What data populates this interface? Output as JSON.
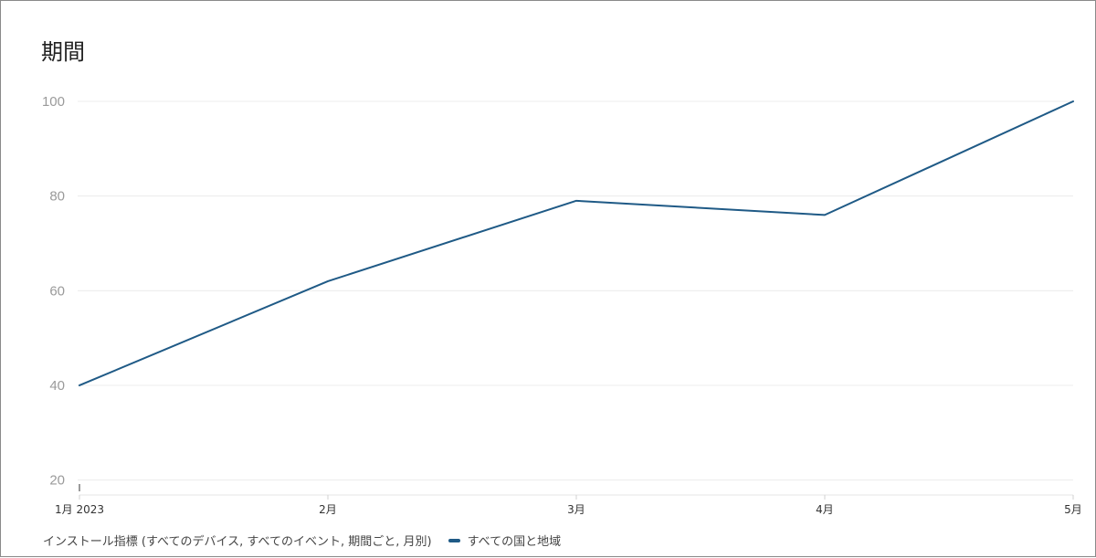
{
  "title": "期間",
  "legend": {
    "metric_label": "インストール指標 (すべてのデバイス, すべてのイベント, 期間ごと, 月別)",
    "series_label": "すべての国と地域"
  },
  "colors": {
    "series": "#1f5a86",
    "grid": "#ececec"
  },
  "chart_data": {
    "type": "line",
    "title": "期間",
    "xlabel": "",
    "ylabel": "",
    "categories": [
      "1月 2023",
      "2月",
      "3月",
      "4月",
      "5月"
    ],
    "series": [
      {
        "name": "すべての国と地域",
        "values": [
          40,
          62,
          79,
          76,
          100
        ]
      }
    ],
    "yticks": [
      20,
      40,
      60,
      80,
      100
    ],
    "ylim": [
      18,
      100
    ],
    "grid": true,
    "legend_position": "bottom-left"
  }
}
